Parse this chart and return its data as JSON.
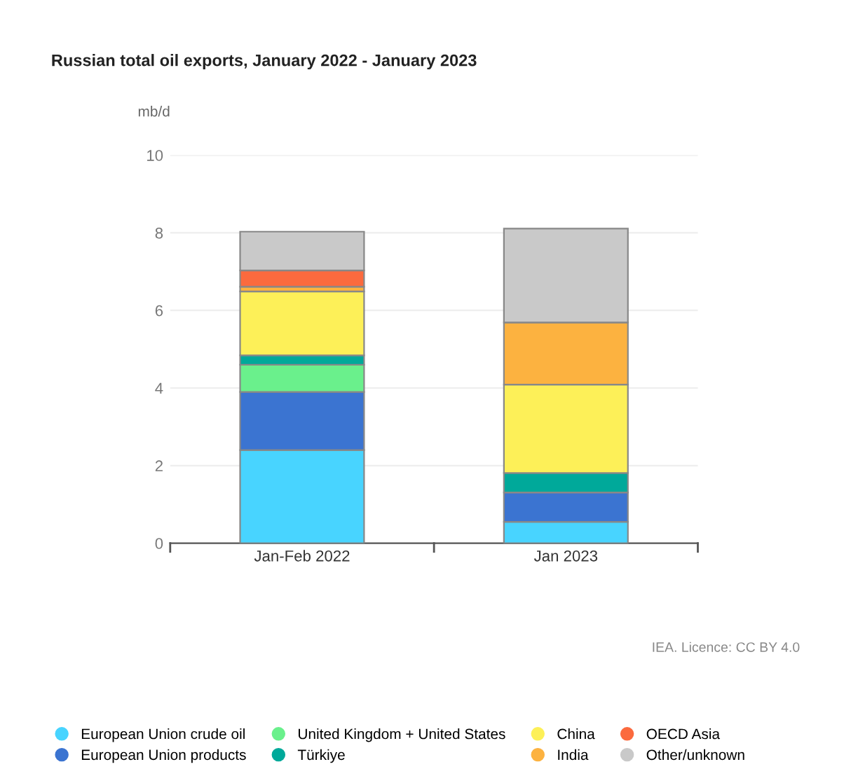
{
  "chart_data": {
    "type": "bar",
    "stacked": true,
    "title": "Russian total oil exports, January 2022 - January 2023",
    "ylabel": "mb/d",
    "categories": [
      "Jan-Feb 2022",
      "Jan 2023"
    ],
    "series": [
      {
        "name": "European Union crude oil",
        "color": "#48d4ff",
        "values": [
          2.4,
          0.55
        ]
      },
      {
        "name": "European Union products",
        "color": "#3b74d1",
        "values": [
          1.5,
          0.76
        ]
      },
      {
        "name": "United Kingdom + United States",
        "color": "#6af08c",
        "values": [
          0.7,
          0
        ]
      },
      {
        "name": "Türkiye",
        "color": "#00a99a",
        "values": [
          0.24,
          0.5
        ]
      },
      {
        "name": "China",
        "color": "#fdf058",
        "values": [
          1.65,
          2.28
        ]
      },
      {
        "name": "India",
        "color": "#fcb240",
        "values": [
          0.12,
          1.6
        ]
      },
      {
        "name": "OECD Asia",
        "color": "#fb6a3e",
        "values": [
          0.42,
          0
        ]
      },
      {
        "name": "Other/unknown",
        "color": "#c9c9c9",
        "values": [
          1.0,
          2.42
        ]
      }
    ],
    "ylim": [
      0,
      10
    ],
    "yticks": [
      0,
      2,
      4,
      6,
      8,
      10
    ],
    "grid": "y",
    "legend": "bottom",
    "annotations": [
      "IEA. Licence: CC BY 4.0"
    ]
  }
}
